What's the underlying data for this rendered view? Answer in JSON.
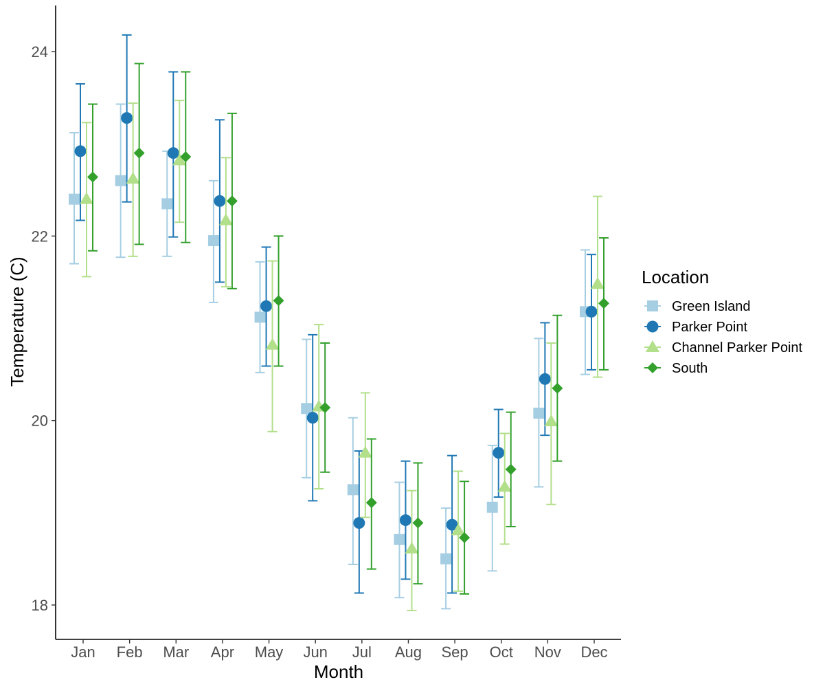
{
  "chart_data": {
    "type": "scatter",
    "subtype": "point-with-errorbars",
    "title": "",
    "xlabel": "Month",
    "ylabel": "Temperature (C)",
    "categories": [
      "Jan",
      "Feb",
      "Mar",
      "Apr",
      "May",
      "Jun",
      "Jul",
      "Aug",
      "Sep",
      "Oct",
      "Nov",
      "Dec"
    ],
    "y_ticks": [
      "18",
      "20",
      "22",
      "24"
    ],
    "ylim": [
      17.65,
      24.5
    ],
    "grid": false,
    "legend": {
      "title": "Location",
      "position": "right"
    },
    "series": [
      {
        "name": "Green Island",
        "color": "#a6cee3",
        "marker": "square",
        "values": [
          22.4,
          22.6,
          22.35,
          21.95,
          21.12,
          20.13,
          19.25,
          18.71,
          18.5,
          19.06,
          20.08,
          21.18
        ],
        "lower": [
          21.7,
          21.77,
          21.78,
          21.28,
          20.52,
          19.38,
          18.44,
          18.08,
          17.96,
          18.37,
          19.28,
          20.5
        ],
        "upper": [
          23.12,
          23.43,
          22.92,
          22.6,
          21.72,
          20.88,
          20.03,
          19.33,
          19.05,
          19.73,
          20.89,
          21.85
        ]
      },
      {
        "name": "Parker Point",
        "color": "#1f78b4",
        "marker": "circle",
        "values": [
          22.92,
          23.28,
          22.9,
          22.38,
          21.24,
          20.03,
          18.89,
          18.92,
          18.87,
          19.65,
          20.45,
          21.18
        ],
        "lower": [
          22.17,
          22.37,
          21.99,
          21.5,
          20.59,
          19.13,
          18.13,
          18.28,
          18.13,
          19.17,
          19.84,
          20.55
        ],
        "upper": [
          23.65,
          24.18,
          23.78,
          23.26,
          21.88,
          20.93,
          19.67,
          19.56,
          19.62,
          20.12,
          21.06,
          21.8
        ]
      },
      {
        "name": "Channel Parker Point",
        "color": "#b2df8a",
        "marker": "triangle",
        "values": [
          22.4,
          22.62,
          22.82,
          22.17,
          20.82,
          20.15,
          19.65,
          18.61,
          18.81,
          19.28,
          19.99,
          21.48
        ],
        "lower": [
          21.56,
          21.78,
          22.15,
          21.45,
          19.88,
          19.26,
          18.95,
          17.94,
          18.15,
          18.66,
          19.09,
          20.47
        ],
        "upper": [
          23.23,
          23.44,
          23.47,
          22.85,
          21.73,
          21.04,
          20.3,
          19.24,
          19.45,
          19.86,
          20.84,
          22.43
        ]
      },
      {
        "name": "South",
        "color": "#33a02c",
        "marker": "diamond",
        "values": [
          22.64,
          22.9,
          22.86,
          22.38,
          21.3,
          20.14,
          19.11,
          18.89,
          18.73,
          19.47,
          20.35,
          21.27
        ],
        "lower": [
          21.84,
          21.91,
          21.93,
          21.43,
          20.59,
          19.44,
          18.39,
          18.23,
          18.12,
          18.85,
          19.56,
          20.55
        ],
        "upper": [
          23.43,
          23.87,
          23.78,
          23.33,
          22.0,
          20.84,
          19.8,
          19.54,
          19.34,
          20.09,
          21.14,
          21.98
        ]
      }
    ]
  }
}
